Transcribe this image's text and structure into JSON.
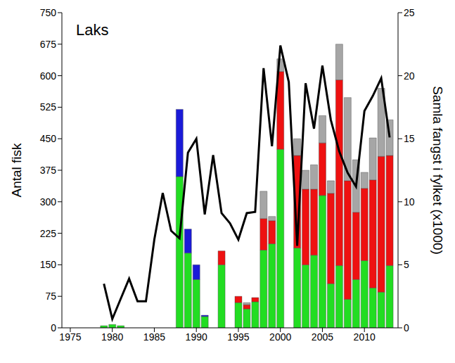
{
  "chart_data": {
    "type": "bar",
    "title": "Laks",
    "ylabel": "Antal fisk",
    "y2label": "Samla fangst i fylket (x1000)",
    "stacked": true,
    "grid": false,
    "x": [
      1979,
      1980,
      1981,
      1982,
      1983,
      1984,
      1985,
      1986,
      1987,
      1988,
      1989,
      1990,
      1991,
      1992,
      1993,
      1994,
      1995,
      1996,
      1997,
      1998,
      1999,
      2000,
      2001,
      2002,
      2003,
      2004,
      2005,
      2006,
      2007,
      2008,
      2009,
      2010,
      2011,
      2012,
      2013
    ],
    "xlim": [
      1974,
      2014
    ],
    "xticks": [
      1975,
      1980,
      1985,
      1990,
      1995,
      2000,
      2005,
      2010
    ],
    "ylim": [
      0,
      750
    ],
    "yticks": [
      0,
      75,
      150,
      225,
      300,
      375,
      450,
      525,
      600,
      675,
      750
    ],
    "y2lim": [
      0,
      25
    ],
    "y2ticks": [
      0,
      5,
      10,
      15,
      20,
      25
    ],
    "series": [
      {
        "type": "bar",
        "color": "#22dd22",
        "values": [
          5,
          8,
          5,
          null,
          null,
          null,
          null,
          null,
          null,
          360,
          178,
          115,
          27,
          null,
          150,
          null,
          60,
          45,
          62,
          185,
          200,
          425,
          null,
          190,
          150,
          173,
          315,
          105,
          148,
          68,
          115,
          160,
          95,
          85,
          148
        ]
      },
      {
        "type": "bar",
        "color": "#ee1111",
        "values": [
          null,
          null,
          null,
          null,
          null,
          null,
          null,
          null,
          null,
          null,
          null,
          null,
          null,
          null,
          33,
          null,
          15,
          10,
          10,
          75,
          55,
          185,
          null,
          220,
          180,
          157,
          125,
          215,
          442,
          282,
          160,
          172,
          257,
          323,
          262
        ]
      },
      {
        "type": "bar",
        "color": "#a6a6a6",
        "values": [
          null,
          null,
          null,
          null,
          null,
          null,
          null,
          null,
          null,
          null,
          null,
          null,
          null,
          null,
          null,
          null,
          null,
          5,
          null,
          65,
          10,
          30,
          null,
          40,
          45,
          58,
          65,
          30,
          85,
          198,
          125,
          38,
          100,
          162,
          85
        ]
      },
      {
        "type": "bar",
        "color": "#1a1ad8",
        "values": [
          null,
          null,
          null,
          null,
          null,
          null,
          null,
          null,
          null,
          160,
          57,
          35,
          3,
          null,
          null,
          null,
          null,
          null,
          null,
          null,
          null,
          null,
          null,
          null,
          null,
          null,
          null,
          null,
          null,
          null,
          null,
          null,
          null,
          null,
          null
        ]
      },
      {
        "type": "line",
        "axis": "y2",
        "color": "#000000",
        "values": [
          3.5,
          0.7,
          2.3,
          3.9,
          2.1,
          2.1,
          7,
          10.7,
          7.7,
          7.1,
          13.9,
          15,
          9,
          13.7,
          9.1,
          8.3,
          7,
          9.1,
          9.2,
          20.6,
          14.4,
          22.4,
          19.5,
          6.5,
          19.4,
          15.8,
          20.8,
          16.5,
          14,
          12.3,
          11.2,
          17.2,
          18.4,
          19.8,
          15.1
        ]
      }
    ]
  }
}
